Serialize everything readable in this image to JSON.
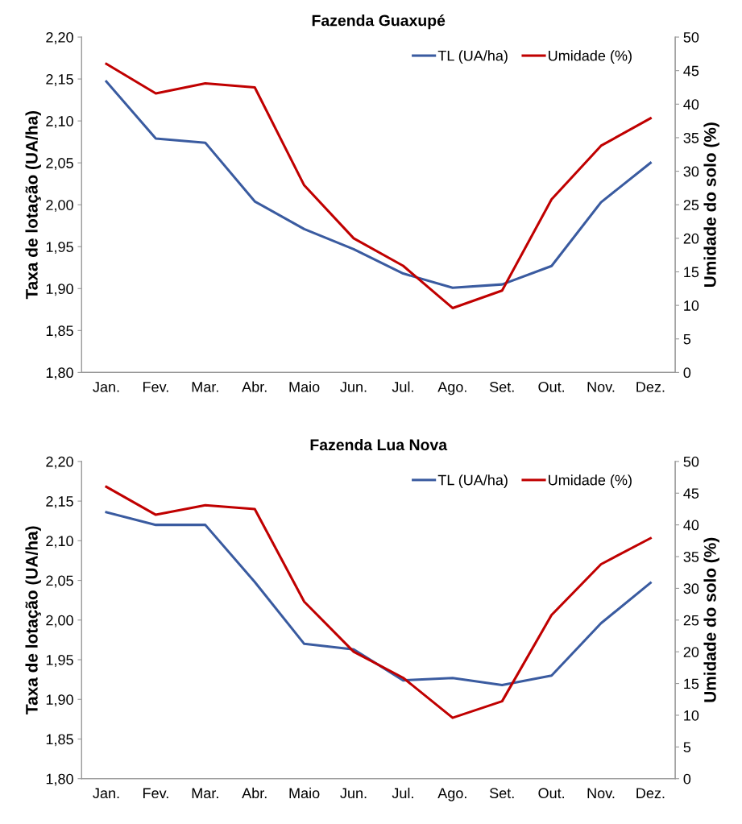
{
  "chart_data": [
    {
      "type": "line",
      "title": "Fazenda Guaxupé",
      "ylabel": "Taxa de lotação (UA/ha)",
      "y2label": "Umidade do solo (%)",
      "categories": [
        "Jan.",
        "Fev.",
        "Mar.",
        "Abr.",
        "Maio",
        "Jun.",
        "Jul.",
        "Ago.",
        "Set.",
        "Out.",
        "Nov.",
        "Dez."
      ],
      "series": [
        {
          "name": "TL (UA/ha)",
          "color": "#3a5ba0",
          "values": [
            2.147,
            2.079,
            2.074,
            2.004,
            1.971,
            1.947,
            1.918,
            1.901,
            1.905,
            1.927,
            2.003,
            2.05
          ]
        },
        {
          "name": "Umidade (%)",
          "color": "#c00000",
          "axis": "y2",
          "values": [
            46.0,
            41.6,
            43.1,
            42.5,
            27.9,
            20.0,
            15.9,
            9.6,
            12.2,
            25.8,
            33.8,
            37.9
          ]
        }
      ],
      "ylim": [
        1.8,
        2.2
      ],
      "yticks": [
        {
          "value": 1.8,
          "label": "1,80"
        },
        {
          "value": 1.85,
          "label": "1,85"
        },
        {
          "value": 1.9,
          "label": "1,90"
        },
        {
          "value": 1.95,
          "label": "1,95"
        },
        {
          "value": 2.0,
          "label": "2,00"
        },
        {
          "value": 2.05,
          "label": "2,05"
        },
        {
          "value": 2.1,
          "label": "2,10"
        },
        {
          "value": 2.15,
          "label": "2,15"
        },
        {
          "value": 2.2,
          "label": "2,20"
        }
      ],
      "y2lim": [
        0,
        50
      ],
      "y2ticks": [
        0,
        5,
        10,
        15,
        20,
        25,
        30,
        35,
        40,
        45,
        50
      ],
      "legend": "top right",
      "grid": false,
      "marker": "none",
      "line_style": "solid"
    },
    {
      "type": "line",
      "title": "Fazenda Lua Nova",
      "ylabel": "Taxa de lotação (UA/ha)",
      "y2label": "Umidade do solo (%)",
      "categories": [
        "Jan.",
        "Fev.",
        "Mar.",
        "Abr.",
        "Maio",
        "Jun.",
        "Jul.",
        "Ago.",
        "Set.",
        "Out.",
        "Nov.",
        "Dez."
      ],
      "series": [
        {
          "name": "TL (UA/ha)",
          "color": "#3a5ba0",
          "values": [
            2.136,
            2.12,
            2.12,
            2.048,
            1.97,
            1.963,
            1.924,
            1.927,
            1.918,
            1.93,
            1.996,
            2.047
          ]
        },
        {
          "name": "Umidade (%)",
          "color": "#c00000",
          "axis": "y2",
          "values": [
            46.0,
            41.6,
            43.1,
            42.5,
            27.9,
            20.0,
            15.9,
            9.6,
            12.2,
            25.8,
            33.8,
            37.9
          ]
        }
      ],
      "ylim": [
        1.8,
        2.2
      ],
      "yticks": [
        {
          "value": 1.8,
          "label": "1,80"
        },
        {
          "value": 1.85,
          "label": "1,85"
        },
        {
          "value": 1.9,
          "label": "1,90"
        },
        {
          "value": 1.95,
          "label": "1,95"
        },
        {
          "value": 2.0,
          "label": "2,00"
        },
        {
          "value": 2.05,
          "label": "2,05"
        },
        {
          "value": 2.1,
          "label": "2,10"
        },
        {
          "value": 2.15,
          "label": "2,15"
        },
        {
          "value": 2.2,
          "label": "2,20"
        }
      ],
      "y2lim": [
        0,
        50
      ],
      "y2ticks": [
        0,
        5,
        10,
        15,
        20,
        25,
        30,
        35,
        40,
        45,
        50
      ],
      "legend": "top right",
      "grid": false,
      "marker": "none",
      "line_style": "solid"
    }
  ]
}
